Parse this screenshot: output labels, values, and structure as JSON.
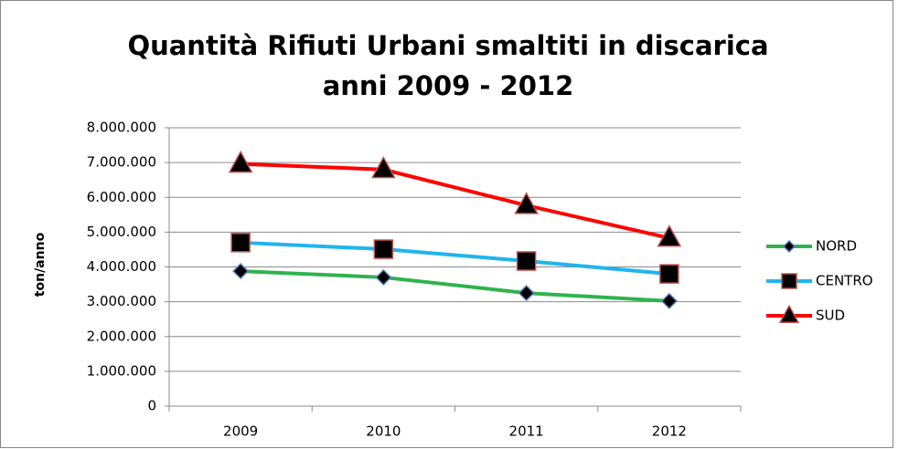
{
  "chart_data": {
    "type": "line",
    "title": [
      "Quantità Rifiuti Urbani smaltiti in discarica",
      "anni 2009 - 2012"
    ],
    "y_label": "ton/anno",
    "categories": [
      "2009",
      "2010",
      "2011",
      "2012"
    ],
    "series": [
      {
        "name": "NORD",
        "color": "#2fb34d",
        "marker": "diamond",
        "values": [
          3880000,
          3700000,
          3250000,
          3020000
        ]
      },
      {
        "name": "CENTRO",
        "color": "#1fb4ef",
        "marker": "square",
        "values": [
          4700000,
          4510000,
          4170000,
          3800000
        ]
      },
      {
        "name": "SUD",
        "color": "#ff0000",
        "marker": "triangle",
        "values": [
          6960000,
          6800000,
          5770000,
          4830000
        ]
      }
    ],
    "ylim": [
      0,
      8000000
    ],
    "yticks": [
      0,
      {
        "value": 1000000,
        "label": "1.000.000"
      },
      {
        "value": 2000000,
        "label": "2.000.000"
      },
      {
        "value": 3000000,
        "label": "3.000.000"
      },
      {
        "value": 4000000,
        "label": "4.000.000"
      },
      {
        "value": 5000000,
        "label": "5.000.000"
      },
      {
        "value": 6000000,
        "label": "6.000.000"
      },
      {
        "value": 7000000,
        "label": "7.000.000"
      },
      {
        "value": 8000000,
        "label": "8.000.000"
      }
    ],
    "grid": true,
    "legend": "right"
  }
}
